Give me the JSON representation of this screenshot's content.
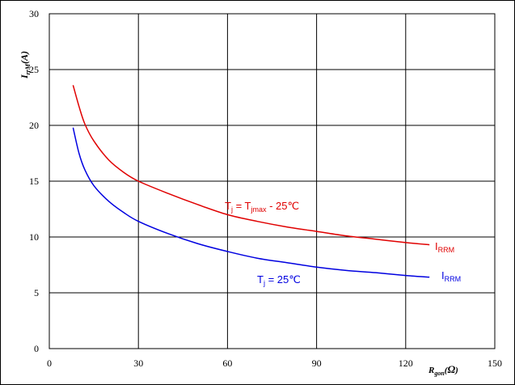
{
  "chart_data": {
    "type": "line",
    "xlim": [
      0,
      150
    ],
    "ylim": [
      0,
      30
    ],
    "x_ticks": [
      0,
      30,
      60,
      90,
      120,
      150
    ],
    "y_ticks": [
      0,
      5,
      10,
      15,
      20,
      25,
      30
    ],
    "grid": true,
    "xlabel": {
      "main": "R",
      "sub": "gon",
      "unit": "Ω"
    },
    "ylabel": {
      "main": "I",
      "sub": "rrM",
      "unit": "A"
    },
    "series": [
      {
        "name": "I RRM (T j = T jmax - 25℃)",
        "color": "#e00000",
        "x": [
          8,
          10,
          12,
          15,
          20,
          25,
          30,
          40,
          50,
          60,
          70,
          80,
          90,
          100,
          110,
          120,
          128
        ],
        "y": [
          23.6,
          21.7,
          20.1,
          18.6,
          16.9,
          15.8,
          15.0,
          13.9,
          12.9,
          12.0,
          11.4,
          10.9,
          10.5,
          10.1,
          9.8,
          9.5,
          9.3
        ]
      },
      {
        "name": "I RRM (T j = 25℃)",
        "color": "#0000e0",
        "x": [
          8,
          10,
          12,
          15,
          20,
          25,
          30,
          40,
          50,
          60,
          70,
          80,
          90,
          100,
          110,
          120,
          128
        ],
        "y": [
          19.8,
          17.5,
          16.0,
          14.6,
          13.2,
          12.2,
          11.4,
          10.3,
          9.4,
          8.7,
          8.1,
          7.7,
          7.3,
          7.0,
          6.8,
          6.55,
          6.4
        ]
      }
    ],
    "annotations": {
      "red_condition": {
        "t": "T",
        "j": "j",
        "eq": " = T",
        "jmax": "jmax",
        "rest": " - 25℃"
      },
      "blue_condition": {
        "t": "T",
        "j": "j",
        "rest": " = 25℃"
      },
      "red_label": {
        "main": "I",
        "sub": "RRM"
      },
      "blue_label": {
        "main": "I",
        "sub": "RRM"
      }
    }
  }
}
